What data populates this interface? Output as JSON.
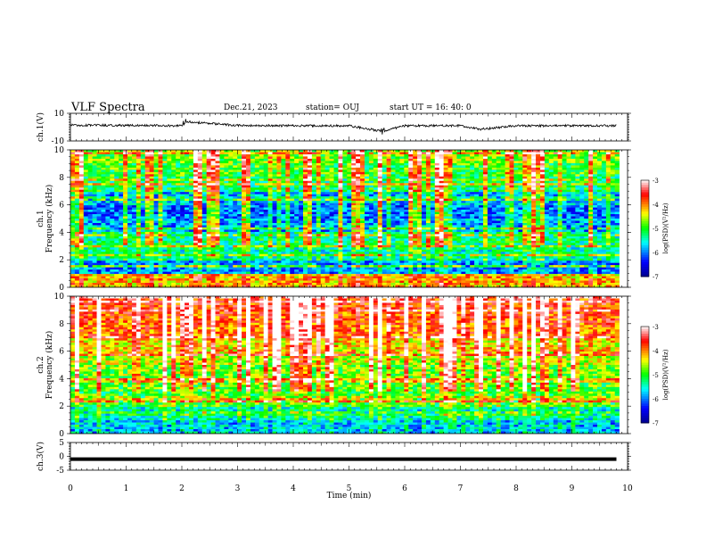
{
  "header": {
    "title": "VLF Spectra",
    "date": "Dec.21, 2023",
    "station": "station= OUJ",
    "start": "start  UT =   16: 40: 0"
  },
  "colors": {
    "waveform": "#000000",
    "colormap": [
      "#00008f",
      "#0000ff",
      "#00ffff",
      "#00ff00",
      "#ffff00",
      "#ff0000",
      "#ffffff"
    ]
  },
  "chart_data": [
    {
      "type": "line",
      "name": "ch1 waveform",
      "ylabel": "ch.1(V)",
      "ylim": [
        -10,
        10
      ],
      "yticks": [
        "10",
        "-10"
      ],
      "x": [
        0,
        1,
        2,
        2.05,
        3,
        4,
        5,
        5.6,
        6,
        7,
        7.35,
        8,
        9,
        9.8
      ],
      "y": [
        1.5,
        1.2,
        1.0,
        4.0,
        1.2,
        1.0,
        1.0,
        -3.0,
        1.0,
        1.0,
        -1.5,
        1.0,
        1.0,
        1.0
      ]
    },
    {
      "type": "heatmap",
      "name": "ch1 spectrogram",
      "ylabel": "ch.1\nFrequency (kHz)",
      "ylim": [
        0,
        10
      ],
      "yticks": [
        "0",
        "2",
        "4",
        "6",
        "8",
        "10"
      ],
      "xlim": [
        0,
        10
      ],
      "colorbar": {
        "label": "log(PSD)(V²/Hz)",
        "ticks": [
          "-3",
          "-4",
          "-5",
          "-6",
          "-7"
        ],
        "range": [
          -7,
          -3
        ]
      },
      "mean_logpsd_by_band": {
        "freq_kHz": [
          0.5,
          1.5,
          2.5,
          3.5,
          4.5,
          5.5,
          6.5,
          7.5,
          8.5,
          9.5
        ],
        "logpsd": [
          -4.2,
          -6.0,
          -5.4,
          -5.3,
          -5.9,
          -6.1,
          -5.8,
          -5.2,
          -5.0,
          -4.8
        ]
      }
    },
    {
      "type": "heatmap",
      "name": "ch2 spectrogram",
      "ylabel": "ch.2\nFrequency (kHz)",
      "ylim": [
        0,
        10
      ],
      "yticks": [
        "0",
        "2",
        "4",
        "6",
        "8",
        "10"
      ],
      "xlim": [
        0,
        10
      ],
      "colorbar": {
        "label": "log(PSD)(V²/Hz)",
        "ticks": [
          "-3",
          "-4",
          "-5",
          "-6",
          "-7"
        ],
        "range": [
          -7,
          -3
        ]
      },
      "mean_logpsd_by_band": {
        "freq_kHz": [
          0.5,
          1.5,
          2.5,
          3.5,
          4.5,
          5.5,
          6.5,
          7.5,
          8.5,
          9.5
        ],
        "logpsd": [
          -5.8,
          -5.5,
          -5.0,
          -4.9,
          -4.8,
          -4.6,
          -4.3,
          -3.9,
          -3.8,
          -3.7
        ]
      }
    },
    {
      "type": "line",
      "name": "ch3 waveform",
      "ylabel": "ch.3(V)",
      "ylim": [
        -5,
        5
      ],
      "yticks": [
        "5",
        "0",
        "-5"
      ],
      "x": [
        0,
        9.8
      ],
      "y": [
        -1,
        -1
      ]
    }
  ],
  "xaxis": {
    "label": "Time  (min)",
    "ticks": [
      "0",
      "1",
      "2",
      "3",
      "4",
      "5",
      "6",
      "7",
      "8",
      "9",
      "10"
    ]
  }
}
